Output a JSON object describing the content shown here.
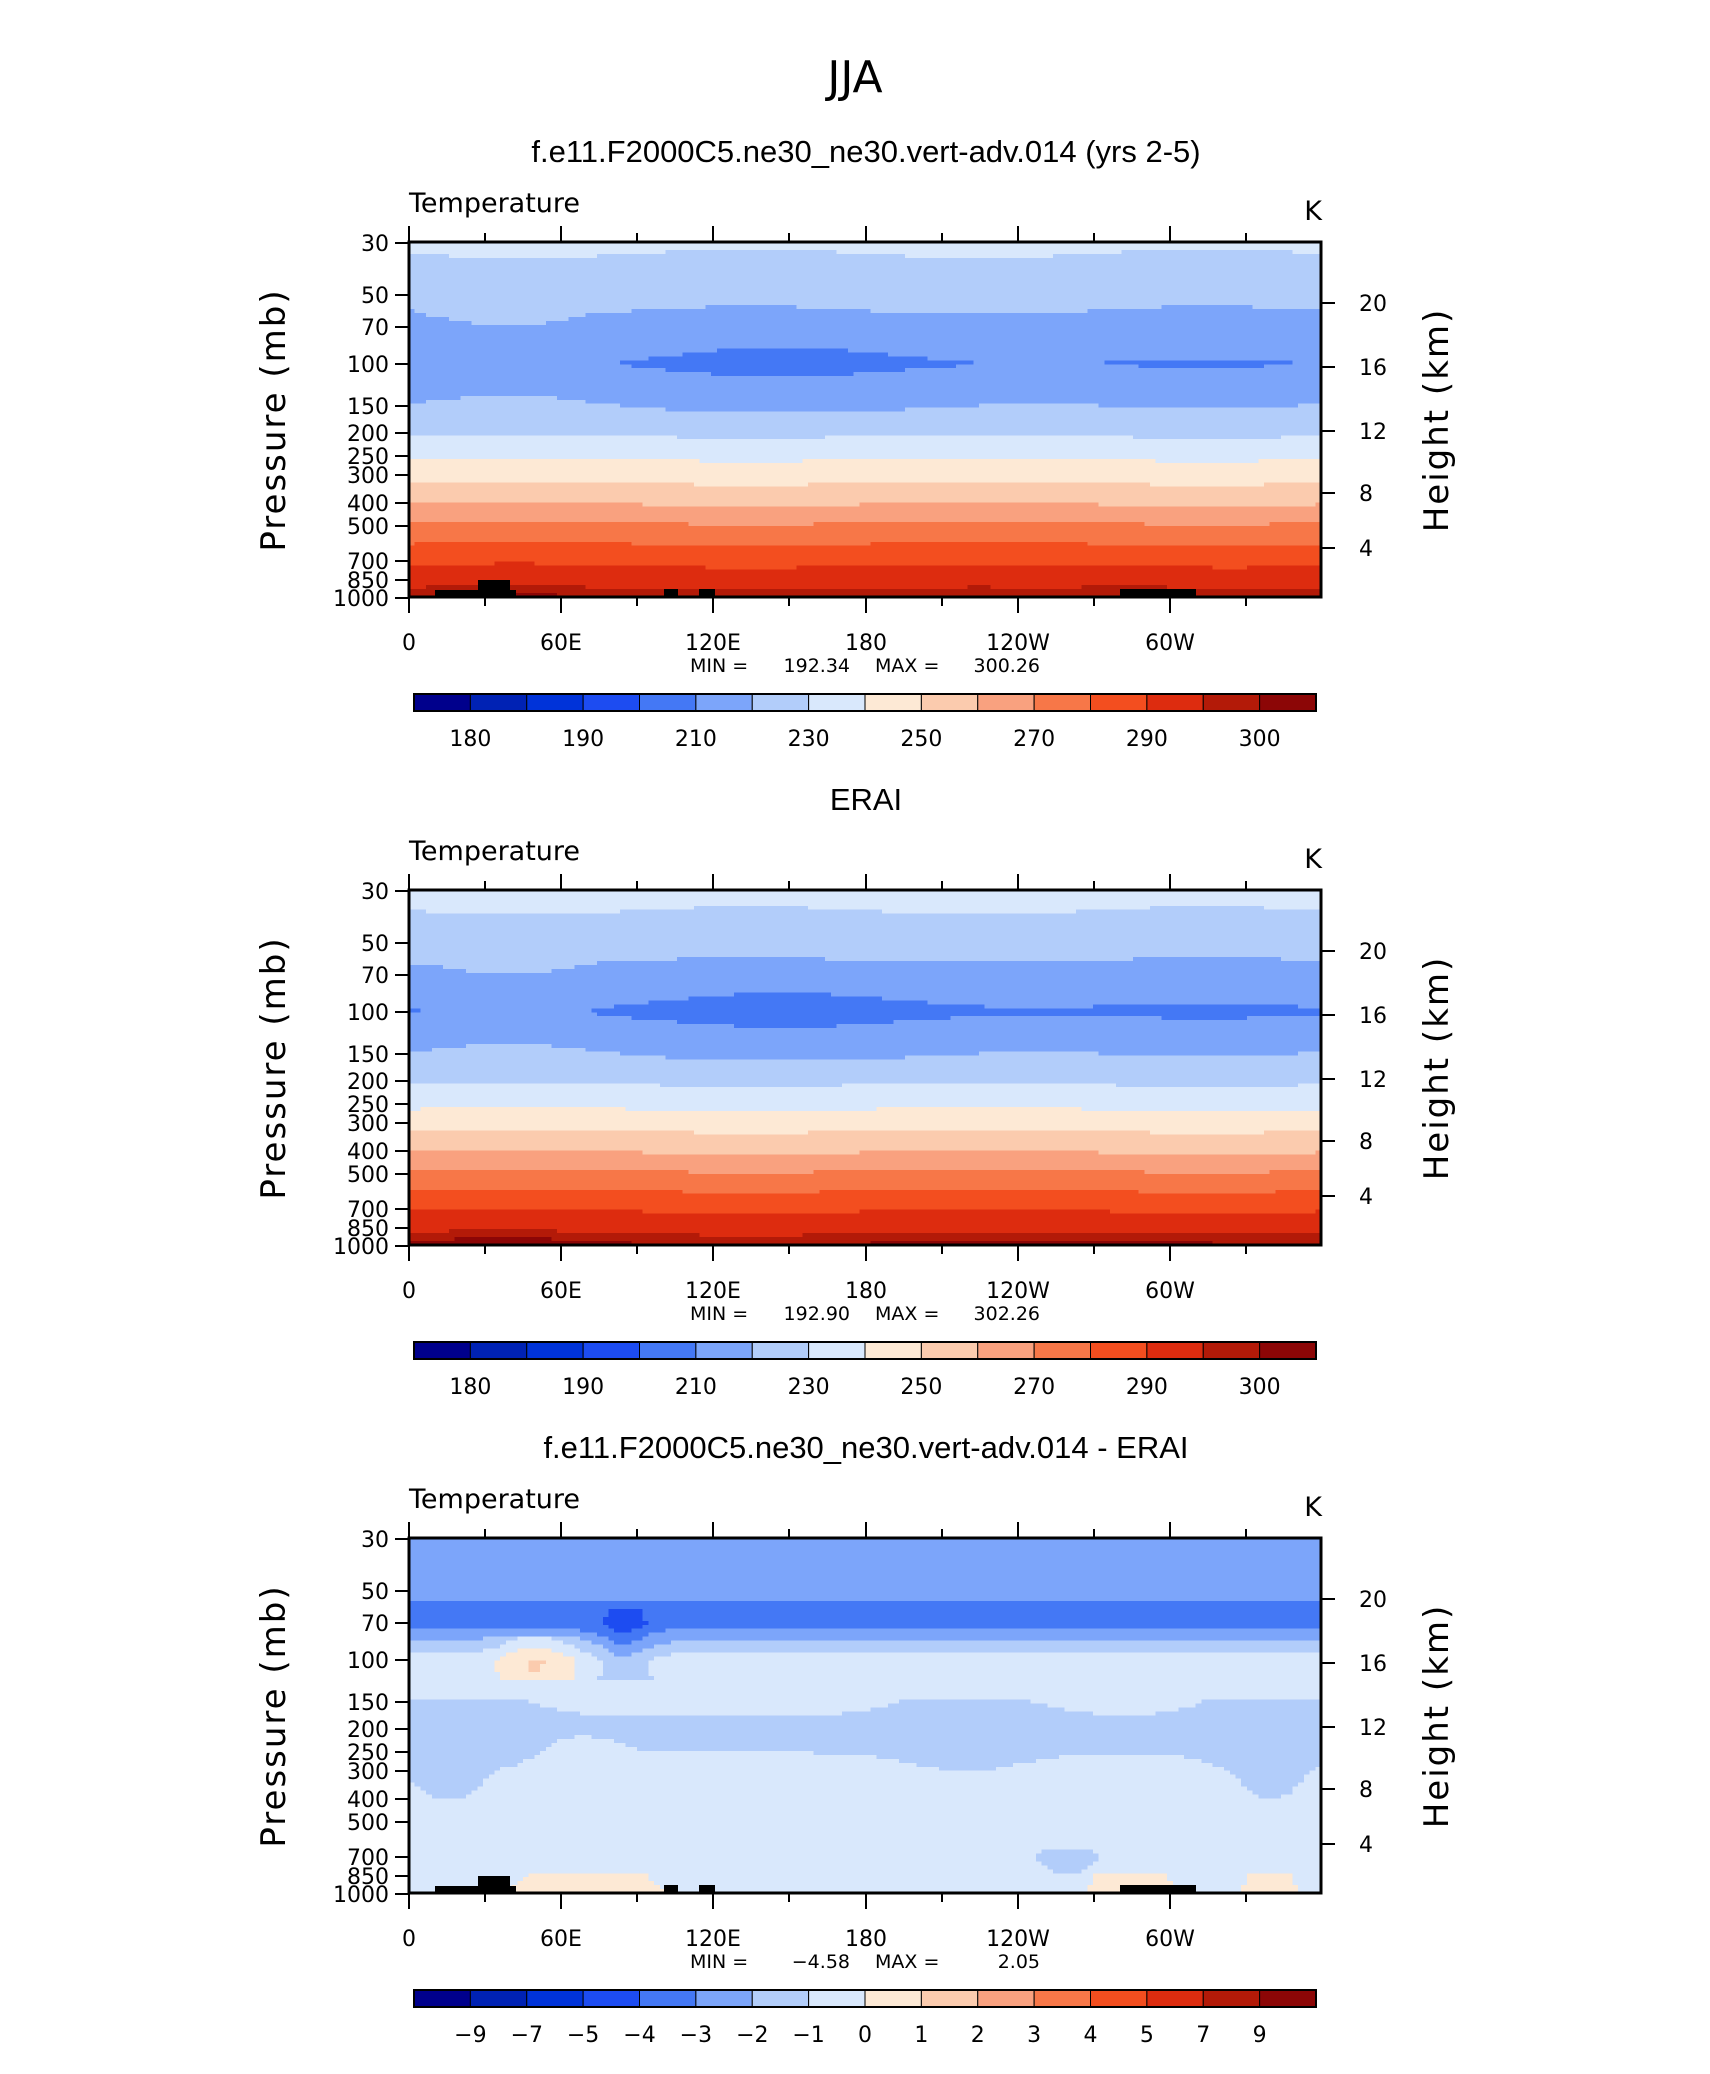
{
  "figure": {
    "supertitle": "JJA"
  },
  "chart_data": [
    {
      "type": "heatmap",
      "title": "f.e11.F2000C5.ne30_ne30.vert-adv.014 (yrs 2-5)",
      "left_label": "Temperature",
      "right_label": "K",
      "ylabel": "Pressure (mb)",
      "ylabel_right": "Height (km)",
      "x_ticks": [
        "0",
        "60E",
        "120E",
        "180",
        "120W",
        "60W"
      ],
      "y_ticks": [
        "30",
        "50",
        "70",
        "100",
        "150",
        "200",
        "250",
        "300",
        "400",
        "500",
        "700",
        "850",
        "1000"
      ],
      "height_ticks": [
        "20",
        "16",
        "12",
        "8",
        "4"
      ],
      "min_label": "MIN =",
      "min_value": "192.34",
      "max_label": "MAX =",
      "max_value": "300.26",
      "colorbar_labels": [
        "180",
        "190",
        "210",
        "230",
        "250",
        "270",
        "290",
        "300"
      ],
      "colorbar_colors": [
        "#00008c",
        "#0022b4",
        "#0033d9",
        "#1d4cf1",
        "#4478f5",
        "#7ca5fa",
        "#b2cdfa",
        "#d9e8fc",
        "#fde9d5",
        "#fbcbae",
        "#f9a17f",
        "#f77748",
        "#f34e1f",
        "#dd2c0f",
        "#b31a08",
        "#8c0606"
      ],
      "profile_pressure_mb": [
        30,
        50,
        70,
        100,
        150,
        200,
        250,
        300,
        400,
        500,
        700,
        850,
        1000
      ],
      "profile_temperature_K": [
        222,
        213,
        207,
        200,
        210,
        219,
        229,
        236,
        250,
        262,
        278,
        286,
        294
      ]
    },
    {
      "type": "heatmap",
      "title": "ERAI",
      "left_label": "Temperature",
      "right_label": "K",
      "ylabel": "Pressure (mb)",
      "ylabel_right": "Height (km)",
      "x_ticks": [
        "0",
        "60E",
        "120E",
        "180",
        "120W",
        "60W"
      ],
      "y_ticks": [
        "30",
        "50",
        "70",
        "100",
        "150",
        "200",
        "250",
        "300",
        "400",
        "500",
        "700",
        "850",
        "1000"
      ],
      "height_ticks": [
        "20",
        "16",
        "12",
        "8",
        "4"
      ],
      "min_label": "MIN =",
      "min_value": "192.90",
      "max_label": "MAX =",
      "max_value": "302.26",
      "colorbar_labels": [
        "180",
        "190",
        "210",
        "230",
        "250",
        "270",
        "290",
        "300"
      ],
      "colorbar_colors": [
        "#00008c",
        "#0022b4",
        "#0033d9",
        "#1d4cf1",
        "#4478f5",
        "#7ca5fa",
        "#b2cdfa",
        "#d9e8fc",
        "#fde9d5",
        "#fbcbae",
        "#f9a17f",
        "#f77748",
        "#f34e1f",
        "#dd2c0f",
        "#b31a08",
        "#8c0606"
      ],
      "profile_pressure_mb": [
        30,
        50,
        70,
        100,
        150,
        200,
        250,
        300,
        400,
        500,
        700,
        850,
        1000
      ],
      "profile_temperature_K": [
        224,
        214,
        207,
        199,
        210,
        219,
        228,
        236,
        250,
        262,
        279,
        287,
        296
      ]
    },
    {
      "type": "heatmap",
      "title": "f.e11.F2000C5.ne30_ne30.vert-adv.014 - ERAI",
      "left_label": "Temperature",
      "right_label": "K",
      "ylabel": "Pressure (mb)",
      "ylabel_right": "Height (km)",
      "x_ticks": [
        "0",
        "60E",
        "120E",
        "180",
        "120W",
        "60W"
      ],
      "y_ticks": [
        "30",
        "50",
        "70",
        "100",
        "150",
        "200",
        "250",
        "300",
        "400",
        "500",
        "700",
        "850",
        "1000"
      ],
      "height_ticks": [
        "20",
        "16",
        "12",
        "8",
        "4"
      ],
      "min_label": "MIN =",
      "min_value": "−4.58",
      "max_label": "MAX =",
      "max_value": "2.05",
      "colorbar_labels": [
        "−9",
        "−7",
        "−5",
        "−4",
        "−3",
        "−2",
        "−1",
        "0",
        "1",
        "2",
        "3",
        "4",
        "5",
        "7",
        "9"
      ],
      "colorbar_colors": [
        "#00008c",
        "#0022b4",
        "#0033d9",
        "#1d4cf1",
        "#4478f5",
        "#7ca5fa",
        "#b2cdfa",
        "#d9e8fc",
        "#fde9d5",
        "#fbcbae",
        "#f9a17f",
        "#f77748",
        "#f34e1f",
        "#dd2c0f",
        "#b31a08",
        "#8c0606"
      ],
      "profile_pressure_mb": [
        30,
        50,
        70,
        100,
        150,
        200,
        250,
        300,
        400,
        500,
        700,
        850,
        1000
      ],
      "profile_difference_K": [
        -2.5,
        -2.7,
        -3.5,
        -0.5,
        -0.8,
        -1.2,
        -1.0,
        -0.6,
        -0.4,
        -0.3,
        -0.5,
        -0.4,
        -0.2
      ]
    }
  ]
}
